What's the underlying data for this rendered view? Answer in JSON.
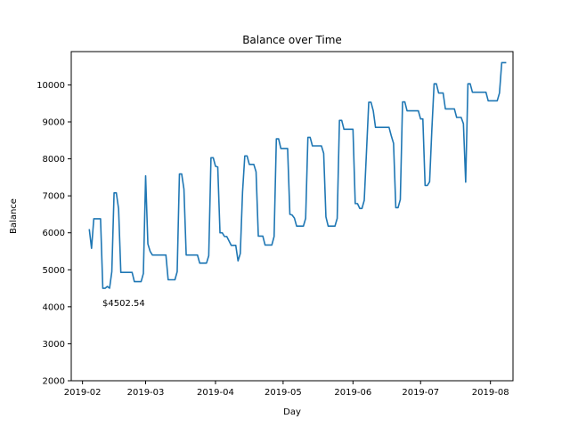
{
  "chart_data": {
    "type": "line",
    "title": "Balance over Time",
    "xlabel": "Day",
    "ylabel": "Balance",
    "xlim": [
      "2019-01-27",
      "2019-08-11"
    ],
    "ylim": [
      2000,
      10900
    ],
    "x_ticks": [
      {
        "date": "2019-02-01",
        "label": "2019-02"
      },
      {
        "date": "2019-03-01",
        "label": "2019-03"
      },
      {
        "date": "2019-04-01",
        "label": "2019-04"
      },
      {
        "date": "2019-05-01",
        "label": "2019-05"
      },
      {
        "date": "2019-06-01",
        "label": "2019-06"
      },
      {
        "date": "2019-07-01",
        "label": "2019-07"
      },
      {
        "date": "2019-08-01",
        "label": "2019-08"
      }
    ],
    "y_ticks": [
      2000,
      3000,
      4000,
      5000,
      6000,
      7000,
      8000,
      9000,
      10000
    ],
    "grid": false,
    "legend": "none",
    "series": [
      {
        "color": "#1f77b4",
        "points": [
          [
            "2019-02-04",
            6100
          ],
          [
            "2019-02-05",
            5580
          ],
          [
            "2019-02-06",
            6380
          ],
          [
            "2019-02-09",
            6380
          ],
          [
            "2019-02-10",
            4500
          ],
          [
            "2019-02-11",
            4500
          ],
          [
            "2019-02-12",
            4550
          ],
          [
            "2019-02-13",
            4502.54
          ],
          [
            "2019-02-14",
            4950
          ],
          [
            "2019-02-15",
            7080
          ],
          [
            "2019-02-16",
            7080
          ],
          [
            "2019-02-17",
            6650
          ],
          [
            "2019-02-18",
            4930
          ],
          [
            "2019-02-23",
            4930
          ],
          [
            "2019-02-24",
            4680
          ],
          [
            "2019-02-27",
            4680
          ],
          [
            "2019-02-28",
            4900
          ],
          [
            "2019-03-01",
            7540
          ],
          [
            "2019-03-02",
            5700
          ],
          [
            "2019-03-03",
            5500
          ],
          [
            "2019-03-04",
            5400
          ],
          [
            "2019-03-10",
            5400
          ],
          [
            "2019-03-11",
            4730
          ],
          [
            "2019-03-14",
            4730
          ],
          [
            "2019-03-15",
            4950
          ],
          [
            "2019-03-16",
            7590
          ],
          [
            "2019-03-17",
            7590
          ],
          [
            "2019-03-18",
            7180
          ],
          [
            "2019-03-19",
            5400
          ],
          [
            "2019-03-24",
            5400
          ],
          [
            "2019-03-25",
            5180
          ],
          [
            "2019-03-28",
            5180
          ],
          [
            "2019-03-29",
            5380
          ],
          [
            "2019-03-30",
            8030
          ],
          [
            "2019-03-31",
            8030
          ],
          [
            "2019-04-01",
            7800
          ],
          [
            "2019-04-02",
            7780
          ],
          [
            "2019-04-03",
            6000
          ],
          [
            "2019-04-04",
            6000
          ],
          [
            "2019-04-05",
            5900
          ],
          [
            "2019-04-06",
            5900
          ],
          [
            "2019-04-08",
            5660
          ],
          [
            "2019-04-10",
            5660
          ],
          [
            "2019-04-11",
            5240
          ],
          [
            "2019-04-12",
            5440
          ],
          [
            "2019-04-13",
            7100
          ],
          [
            "2019-04-14",
            8080
          ],
          [
            "2019-04-15",
            8080
          ],
          [
            "2019-04-16",
            7850
          ],
          [
            "2019-04-18",
            7850
          ],
          [
            "2019-04-19",
            7650
          ],
          [
            "2019-04-20",
            5910
          ],
          [
            "2019-04-22",
            5910
          ],
          [
            "2019-04-23",
            5670
          ],
          [
            "2019-04-26",
            5670
          ],
          [
            "2019-04-27",
            5900
          ],
          [
            "2019-04-28",
            8540
          ],
          [
            "2019-04-29",
            8540
          ],
          [
            "2019-04-30",
            8280
          ],
          [
            "2019-05-03",
            8280
          ],
          [
            "2019-05-04",
            6500
          ],
          [
            "2019-05-05",
            6480
          ],
          [
            "2019-05-06",
            6400
          ],
          [
            "2019-05-07",
            6180
          ],
          [
            "2019-05-10",
            6180
          ],
          [
            "2019-05-11",
            6390
          ],
          [
            "2019-05-12",
            8580
          ],
          [
            "2019-05-13",
            8580
          ],
          [
            "2019-05-14",
            8350
          ],
          [
            "2019-05-18",
            8350
          ],
          [
            "2019-05-19",
            8150
          ],
          [
            "2019-05-20",
            6430
          ],
          [
            "2019-05-21",
            6180
          ],
          [
            "2019-05-24",
            6180
          ],
          [
            "2019-05-25",
            6390
          ],
          [
            "2019-05-26",
            9040
          ],
          [
            "2019-05-27",
            9040
          ],
          [
            "2019-05-28",
            8800
          ],
          [
            "2019-06-01",
            8800
          ],
          [
            "2019-06-02",
            6790
          ],
          [
            "2019-06-03",
            6790
          ],
          [
            "2019-06-04",
            6660
          ],
          [
            "2019-06-05",
            6660
          ],
          [
            "2019-06-06",
            6880
          ],
          [
            "2019-06-07",
            8200
          ],
          [
            "2019-06-08",
            9530
          ],
          [
            "2019-06-09",
            9530
          ],
          [
            "2019-06-10",
            9300
          ],
          [
            "2019-06-11",
            8850
          ],
          [
            "2019-06-17",
            8850
          ],
          [
            "2019-06-18",
            8620
          ],
          [
            "2019-06-19",
            8420
          ],
          [
            "2019-06-20",
            6680
          ],
          [
            "2019-06-21",
            6680
          ],
          [
            "2019-06-22",
            6900
          ],
          [
            "2019-06-23",
            9540
          ],
          [
            "2019-06-24",
            9540
          ],
          [
            "2019-06-25",
            9300
          ],
          [
            "2019-06-30",
            9300
          ],
          [
            "2019-07-01",
            9080
          ],
          [
            "2019-07-02",
            9080
          ],
          [
            "2019-07-03",
            7280
          ],
          [
            "2019-07-04",
            7280
          ],
          [
            "2019-07-05",
            7380
          ],
          [
            "2019-07-06",
            8800
          ],
          [
            "2019-07-07",
            10030
          ],
          [
            "2019-07-08",
            10030
          ],
          [
            "2019-07-09",
            9780
          ],
          [
            "2019-07-11",
            9780
          ],
          [
            "2019-07-12",
            9350
          ],
          [
            "2019-07-16",
            9350
          ],
          [
            "2019-07-17",
            9120
          ],
          [
            "2019-07-19",
            9120
          ],
          [
            "2019-07-20",
            8950
          ],
          [
            "2019-07-21",
            7370
          ],
          [
            "2019-07-22",
            10030
          ],
          [
            "2019-07-23",
            10030
          ],
          [
            "2019-07-24",
            9800
          ],
          [
            "2019-07-30",
            9800
          ],
          [
            "2019-07-31",
            9570
          ],
          [
            "2019-08-04",
            9570
          ],
          [
            "2019-08-05",
            9780
          ],
          [
            "2019-08-06",
            10600
          ],
          [
            "2019-08-08",
            10600
          ]
        ]
      }
    ],
    "annotations": [
      {
        "date": "2019-02-13",
        "value": 4502.54,
        "text": "$4502.54"
      }
    ]
  }
}
